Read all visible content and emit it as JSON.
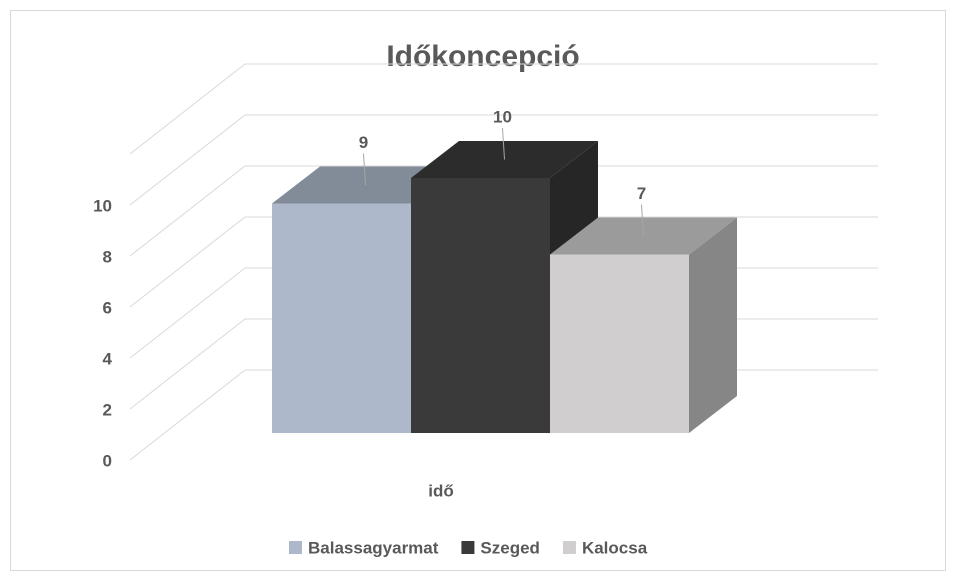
{
  "chart_data": {
    "type": "bar3d",
    "title": "Időkoncepció",
    "categories": [
      "idő"
    ],
    "series": [
      {
        "name": "Balassagyarmat",
        "color": "#adb9ca",
        "values": [
          9
        ]
      },
      {
        "name": "Szeged",
        "color": "#3a3a3a",
        "values": [
          10
        ]
      },
      {
        "name": "Kalocsa",
        "color": "#d0cecf",
        "values": [
          7
        ]
      }
    ],
    "ylim": [
      0,
      12
    ],
    "yticks": [
      0,
      2,
      4,
      6,
      8,
      10
    ],
    "grid": true,
    "legend": "bottom"
  }
}
